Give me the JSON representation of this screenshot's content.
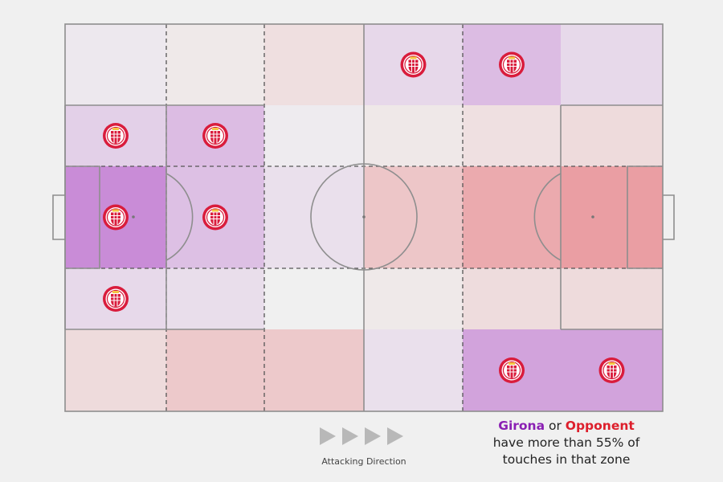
{
  "chart_data": {
    "type": "heatmap",
    "title": "",
    "xlabel": "",
    "ylabel": "",
    "team_color": "#b14fc7",
    "opponent_color": "#e5636b",
    "threshold_percent": 55,
    "rows": [
      {
        "zones": [
          {
            "team": "girona",
            "strength": 0.05,
            "badge": false
          },
          {
            "team": "opponent",
            "strength": 0.05,
            "badge": false
          },
          {
            "team": "opponent",
            "strength": 0.12,
            "badge": false
          },
          {
            "team": "girona",
            "strength": 0.15,
            "badge": true
          },
          {
            "team": "girona",
            "strength": 0.32,
            "badge": true
          },
          {
            "team": "girona",
            "strength": 0.14,
            "badge": false
          }
        ]
      },
      {
        "zones": [
          {
            "team": "girona",
            "strength": 0.2,
            "badge": true
          },
          {
            "team": "girona",
            "strength": 0.32,
            "badge": true
          },
          {
            "team": "girona",
            "strength": 0.03,
            "badge": false
          },
          {
            "team": "opponent",
            "strength": 0.06,
            "badge": false
          },
          {
            "team": "opponent",
            "strength": 0.11,
            "badge": false
          },
          {
            "team": "opponent",
            "strength": 0.15,
            "badge": false
          }
        ]
      },
      {
        "zones": [
          {
            "team": "girona",
            "strength": 0.62,
            "badge": true
          },
          {
            "team": "girona",
            "strength": 0.3,
            "badge": true
          },
          {
            "team": "girona",
            "strength": 0.1,
            "badge": false
          },
          {
            "team": "opponent",
            "strength": 0.3,
            "badge": false
          },
          {
            "team": "opponent",
            "strength": 0.5,
            "badge": false
          },
          {
            "team": "opponent",
            "strength": 0.58,
            "badge": false
          }
        ]
      },
      {
        "zones": [
          {
            "team": "girona",
            "strength": 0.14,
            "badge": true
          },
          {
            "team": "girona",
            "strength": 0.11,
            "badge": false
          },
          {
            "team": "girona",
            "strength": 0.0,
            "badge": false
          },
          {
            "team": "opponent",
            "strength": 0.05,
            "badge": false
          },
          {
            "team": "opponent",
            "strength": 0.14,
            "badge": false
          },
          {
            "team": "opponent",
            "strength": 0.15,
            "badge": false
          }
        ]
      },
      {
        "zones": [
          {
            "team": "opponent",
            "strength": 0.15,
            "badge": false
          },
          {
            "team": "opponent",
            "strength": 0.28,
            "badge": false
          },
          {
            "team": "opponent",
            "strength": 0.28,
            "badge": false
          },
          {
            "team": "girona",
            "strength": 0.1,
            "badge": false
          },
          {
            "team": "girona",
            "strength": 0.48,
            "badge": true
          },
          {
            "team": "girona",
            "strength": 0.48,
            "badge": true
          }
        ]
      }
    ]
  },
  "legend": {
    "team_name": "Girona",
    "connector": " or ",
    "opponent_name": "Opponent",
    "line2": "have more than 55% of",
    "line3": "touches in that zone"
  },
  "direction": {
    "label": "Attacking Direction"
  },
  "badge": {
    "icon": "girona-crest-icon",
    "color": "#d91c3c"
  }
}
